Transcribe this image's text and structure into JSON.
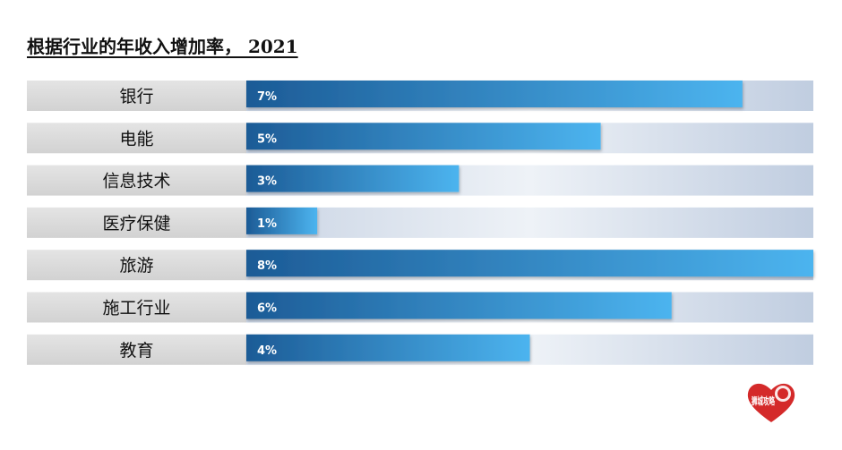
{
  "chart_data": {
    "type": "bar",
    "orientation": "horizontal",
    "title": "根据行业的年收入增加率， 2021",
    "xlabel": "",
    "ylabel": "",
    "xlim": [
      0,
      8
    ],
    "grid": false,
    "legend": "none",
    "categories": [
      "银行",
      "电能",
      "信息技术",
      "医疗保健",
      "旅游",
      "施工行业",
      "教育"
    ],
    "values": [
      7,
      5,
      3,
      1,
      8,
      6,
      4
    ],
    "data_labels": [
      "7%",
      "5%",
      "3%",
      "1%",
      "8%",
      "6%",
      "4%"
    ],
    "colors": {
      "bar_dark": "#1c5b96",
      "bar_light": "#4cb4ef",
      "track": "#c4d0e2",
      "label_bg": "#dcdcdc",
      "value_text": "#ffffff"
    }
  },
  "logo_text": "狮城攻略"
}
